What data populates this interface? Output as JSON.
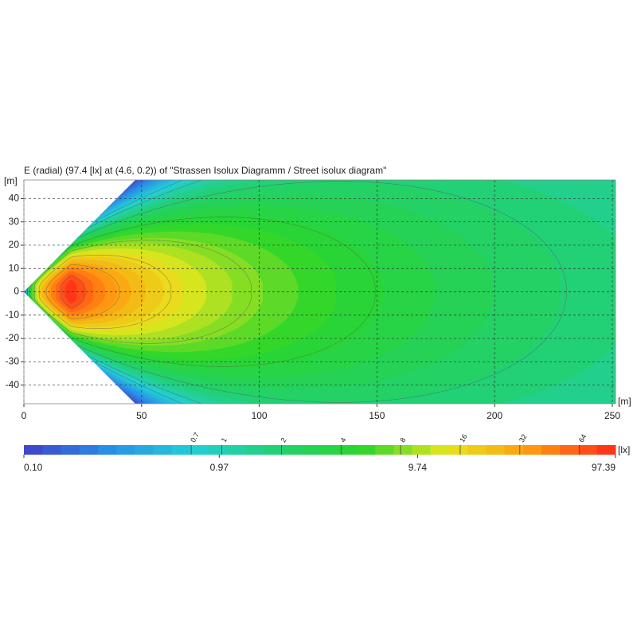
{
  "chart_data": {
    "type": "heatmap",
    "title": "E (radial) (97.4 [lx] at (4.6, 0.2)) of \"Strassen Isolux Diagramm / Street isolux diagram\"",
    "x_label": "[m]",
    "y_label": "[m]",
    "xlim": [
      0,
      250
    ],
    "ylim": [
      -48,
      48
    ],
    "xticks": [
      0,
      50,
      100,
      150,
      200,
      250
    ],
    "yticks": [
      -40,
      -30,
      -20,
      -10,
      0,
      10,
      20,
      30,
      40
    ],
    "grid": true,
    "colorbar": {
      "label": "[lx]",
      "scale": "log",
      "lim": [
        0.1,
        97.39
      ],
      "ticks": [
        {
          "value": 0.1,
          "label": "0.10"
        },
        0.97,
        9.74,
        97.39
      ],
      "contour_levels": [
        0.7,
        1,
        2,
        4,
        8,
        16,
        32,
        64
      ],
      "colors": [
        "#4040c8",
        "#2a8ee6",
        "#22cfd6",
        "#22d070",
        "#2ad62a",
        "#e6e61e",
        "#ff9a10",
        "#ff2a1a"
      ]
    }
  }
}
